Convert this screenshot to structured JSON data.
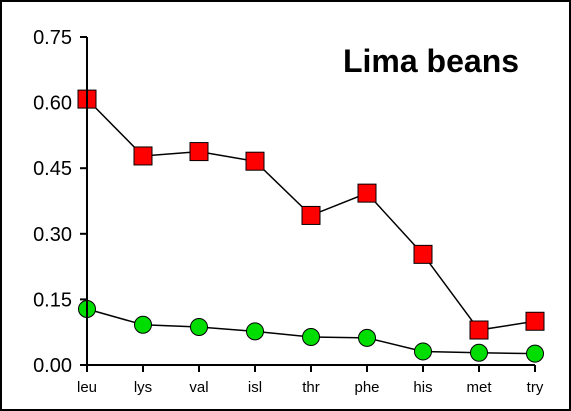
{
  "chart_data": {
    "type": "line",
    "title": "Lima beans",
    "categories": [
      "leu",
      "lys",
      "val",
      "isl",
      "thr",
      "phe",
      "his",
      "met",
      "try"
    ],
    "ylim": [
      0,
      0.75
    ],
    "yticks": [
      "0.00",
      "0.15",
      "0.30",
      "0.45",
      "0.60",
      "0.75"
    ],
    "grid": false,
    "series": [
      {
        "marker": "square",
        "color": "#ff0000",
        "values": [
          0.608,
          0.478,
          0.488,
          0.466,
          0.342,
          0.393,
          0.253,
          0.08,
          0.1
        ]
      },
      {
        "marker": "circle",
        "color": "#00dd00",
        "values": [
          0.128,
          0.092,
          0.087,
          0.077,
          0.064,
          0.062,
          0.031,
          0.028,
          0.026
        ]
      }
    ]
  }
}
